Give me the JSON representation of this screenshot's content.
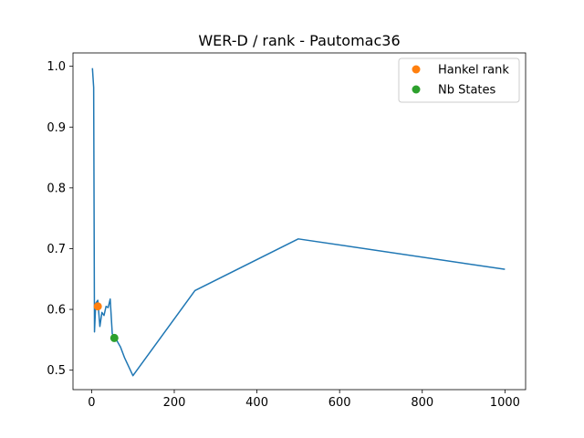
{
  "chart_data": {
    "type": "line",
    "title": "WER-D / rank - Pautomac36",
    "xlabel": "",
    "ylabel": "",
    "xlim": [
      -45,
      1050
    ],
    "ylim": [
      0.468,
      1.022
    ],
    "xticks": [
      0,
      200,
      400,
      600,
      800,
      1000
    ],
    "yticks": [
      0.5,
      0.6,
      0.7,
      0.8,
      0.9,
      1.0
    ],
    "xtick_labels": [
      "0",
      "200",
      "400",
      "600",
      "800",
      "1000"
    ],
    "ytick_labels": [
      "0.5",
      "0.6",
      "0.7",
      "0.8",
      "0.9",
      "1.0"
    ],
    "grid": false,
    "legend_position": "top-right",
    "series": [
      {
        "color": "#1f77b4",
        "x": [
          2,
          5,
          7,
          10,
          15,
          20,
          25,
          30,
          35,
          40,
          45,
          50,
          55,
          60,
          70,
          80,
          100,
          250,
          500,
          1000
        ],
        "y": [
          0.997,
          0.965,
          0.563,
          0.61,
          0.615,
          0.572,
          0.595,
          0.59,
          0.605,
          0.603,
          0.617,
          0.56,
          0.555,
          0.55,
          0.538,
          0.52,
          0.491,
          0.631,
          0.716,
          0.666
        ]
      }
    ],
    "markers": [
      {
        "name": "Hankel rank",
        "color": "#ff7f0e",
        "x": 15,
        "y": 0.605
      },
      {
        "name": "Nb States",
        "color": "#2ca02c",
        "x": 55,
        "y": 0.553
      }
    ]
  }
}
